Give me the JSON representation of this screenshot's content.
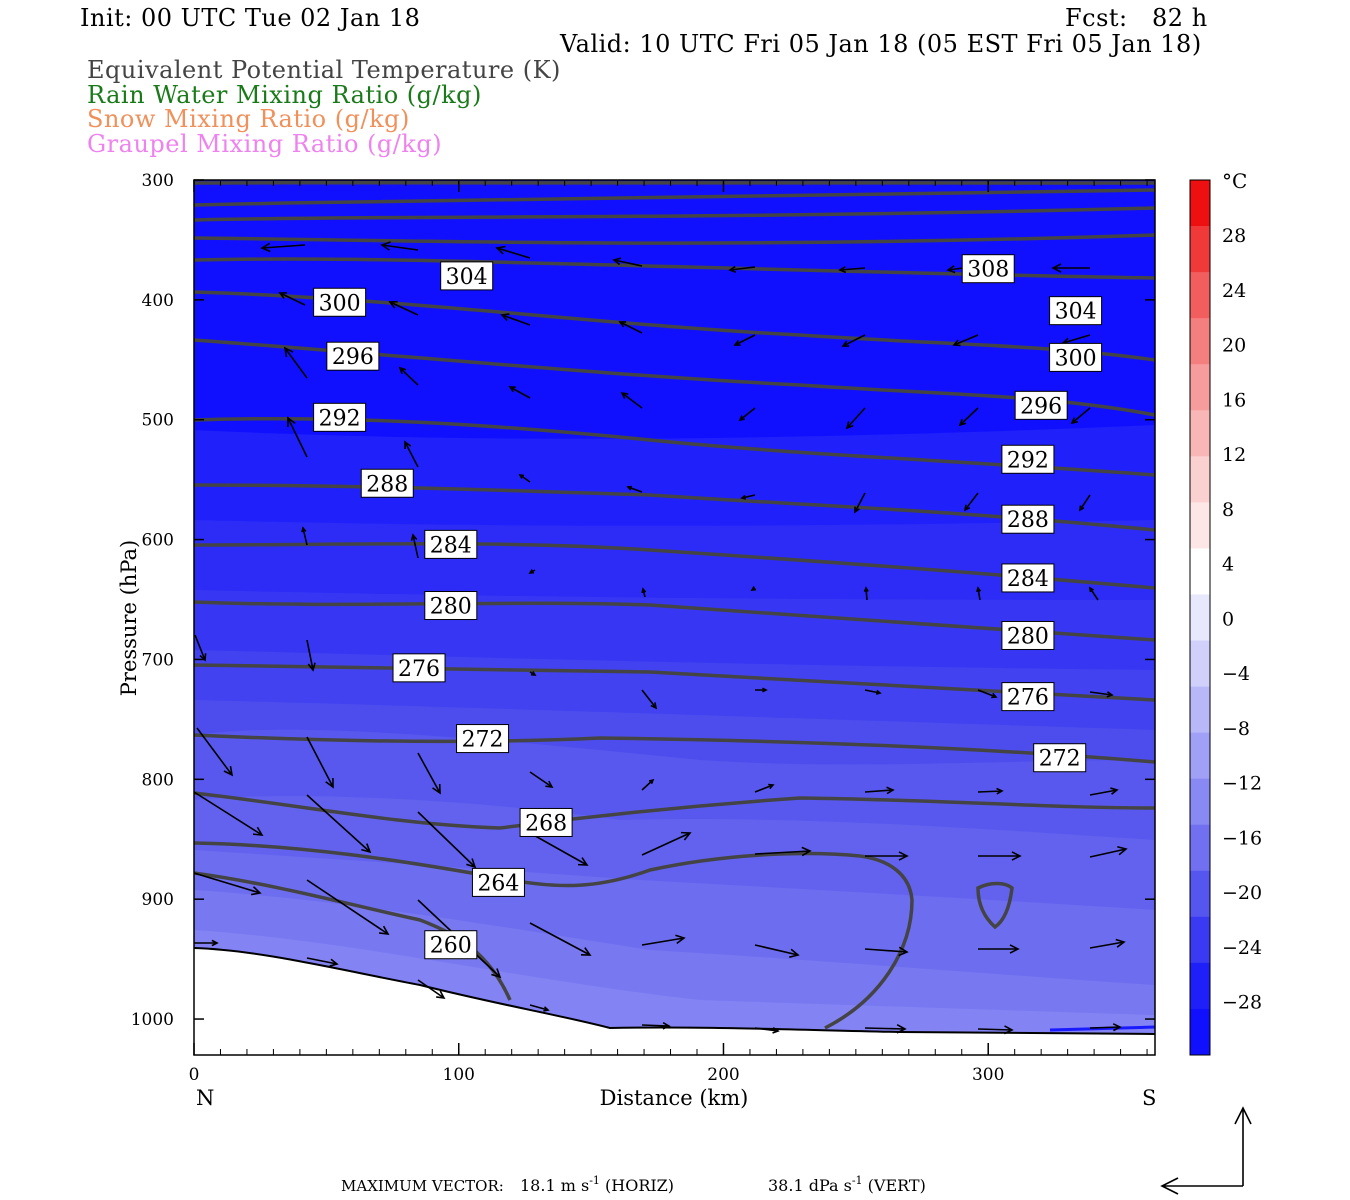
{
  "header": {
    "init": "Init: 00 UTC Tue 02 Jan 18",
    "fcst": "Fcst:   82 h",
    "valid": "Valid: 10 UTC Fri 05 Jan 18 (05 EST Fri 05 Jan 18)"
  },
  "legend": {
    "items": [
      {
        "label": "Equivalent Potential Temperature (K)",
        "color": "#444444"
      },
      {
        "label": "Rain Water Mixing Ratio (g/kg)",
        "color": "#1a7a1a"
      },
      {
        "label": "Snow Mixing Ratio (g/kg)",
        "color": "#f0905a"
      },
      {
        "label": "Graupel Mixing Ratio (g/kg)",
        "color": "#ee82ee"
      }
    ]
  },
  "footer": {
    "max_vector_label": "MAXIMUM VECTOR:",
    "horiz_value": "18.1 m s",
    "horiz_unit": "(HORIZ)",
    "vert_value": "38.1 dPa s",
    "vert_unit": "(VERT)",
    "exponent": "-1"
  },
  "chart_data": {
    "type": "cross-section",
    "xlabel": "Distance (km)",
    "ylabel": "Pressure (hPa)",
    "xlim": [
      0,
      363
    ],
    "ylim": [
      1030,
      300
    ],
    "x_ticks": [
      0,
      100,
      200,
      300
    ],
    "y_ticks": [
      300,
      400,
      500,
      600,
      700,
      800,
      900,
      1000
    ],
    "end_labels": {
      "left": "N",
      "right": "S"
    },
    "colorbar": {
      "unit": "°C",
      "tick_labels": [
        "28",
        "24",
        "20",
        "16",
        "12",
        "8",
        "4",
        "0",
        "−4",
        "−8",
        "−12",
        "−16",
        "−20",
        "−24",
        "−28"
      ],
      "range": [
        -32,
        32
      ],
      "colors": [
        "#1010ff",
        "#2424ff",
        "#3333f5",
        "#4545f0",
        "#5454ee",
        "#6464ef",
        "#7474f0",
        "#8585f3",
        "#9898f5",
        "#ababf7",
        "#bebef9",
        "#d2d2fb",
        "#e6e6fd",
        "#ffffff",
        "#fde6e6",
        "#fbd0d0",
        "#f8b8b8",
        "#f6a0a0",
        "#f38888",
        "#f07070",
        "#ee5858",
        "#ec4040",
        "#ea2828",
        "#ee1010"
      ]
    },
    "theta_e_labels": [
      {
        "value": "304",
        "x": 103,
        "p": 380
      },
      {
        "value": "300",
        "x": 55,
        "p": 402
      },
      {
        "value": "296",
        "x": 60,
        "p": 447
      },
      {
        "value": "292",
        "x": 55,
        "p": 498
      },
      {
        "value": "288",
        "x": 73,
        "p": 553
      },
      {
        "value": "284",
        "x": 97,
        "p": 604
      },
      {
        "value": "280",
        "x": 97,
        "p": 655
      },
      {
        "value": "276",
        "x": 85,
        "p": 707
      },
      {
        "value": "272",
        "x": 109,
        "p": 766
      },
      {
        "value": "268",
        "x": 133,
        "p": 836
      },
      {
        "value": "264",
        "x": 115,
        "p": 886
      },
      {
        "value": "260",
        "x": 97,
        "p": 938
      },
      {
        "value": "308",
        "x": 300,
        "p": 374
      },
      {
        "value": "304",
        "x": 333,
        "p": 409
      },
      {
        "value": "300",
        "x": 333,
        "p": 448
      },
      {
        "value": "296",
        "x": 320,
        "p": 488
      },
      {
        "value": "292",
        "x": 315,
        "p": 533
      },
      {
        "value": "288",
        "x": 315,
        "p": 583
      },
      {
        "value": "284",
        "x": 315,
        "p": 632
      },
      {
        "value": "280",
        "x": 315,
        "p": 680
      },
      {
        "value": "276",
        "x": 315,
        "p": 731
      },
      {
        "value": "272",
        "x": 327,
        "p": 782
      }
    ]
  }
}
